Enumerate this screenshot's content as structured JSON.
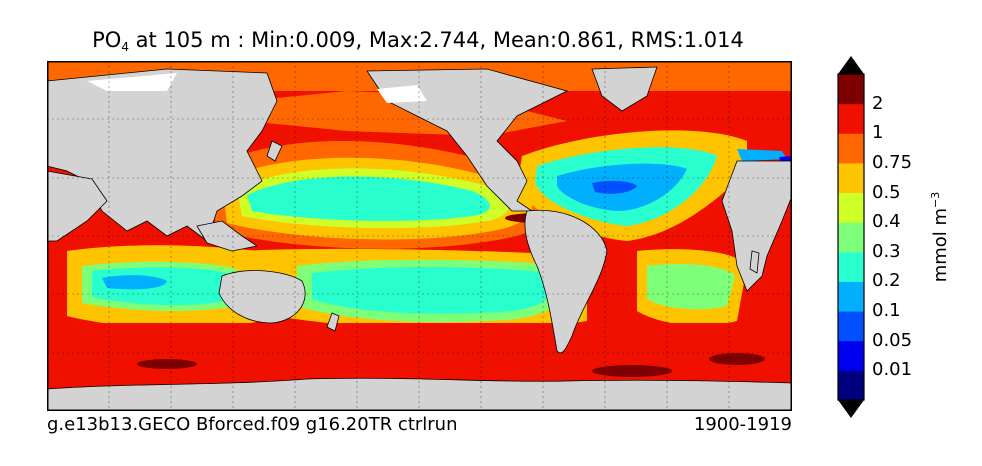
{
  "title": {
    "var_main": "PO",
    "var_sub": "4",
    "rest": " at 105 m : Min:0.009, Max:2.744, Mean:0.861, RMS:1.014"
  },
  "footer": {
    "case": "g.e13b13.GECO Bforced.f09 g16.20TR ctrlrun",
    "years": "1900-1919"
  },
  "colorbar": {
    "label_main": "mmol m",
    "label_sup": "−3",
    "levels": [
      "0.01",
      "0.05",
      "0.1",
      "0.2",
      "0.3",
      "0.4",
      "0.5",
      "0.75",
      "1",
      "2"
    ],
    "colors": [
      "#00007f",
      "#0000f0",
      "#0050ff",
      "#00b0ff",
      "#29ffce",
      "#7dff7a",
      "#ceff29",
      "#ffc400",
      "#ff6800",
      "#f01000",
      "#7f0000"
    ],
    "land_color": "#d3d3d3"
  }
}
